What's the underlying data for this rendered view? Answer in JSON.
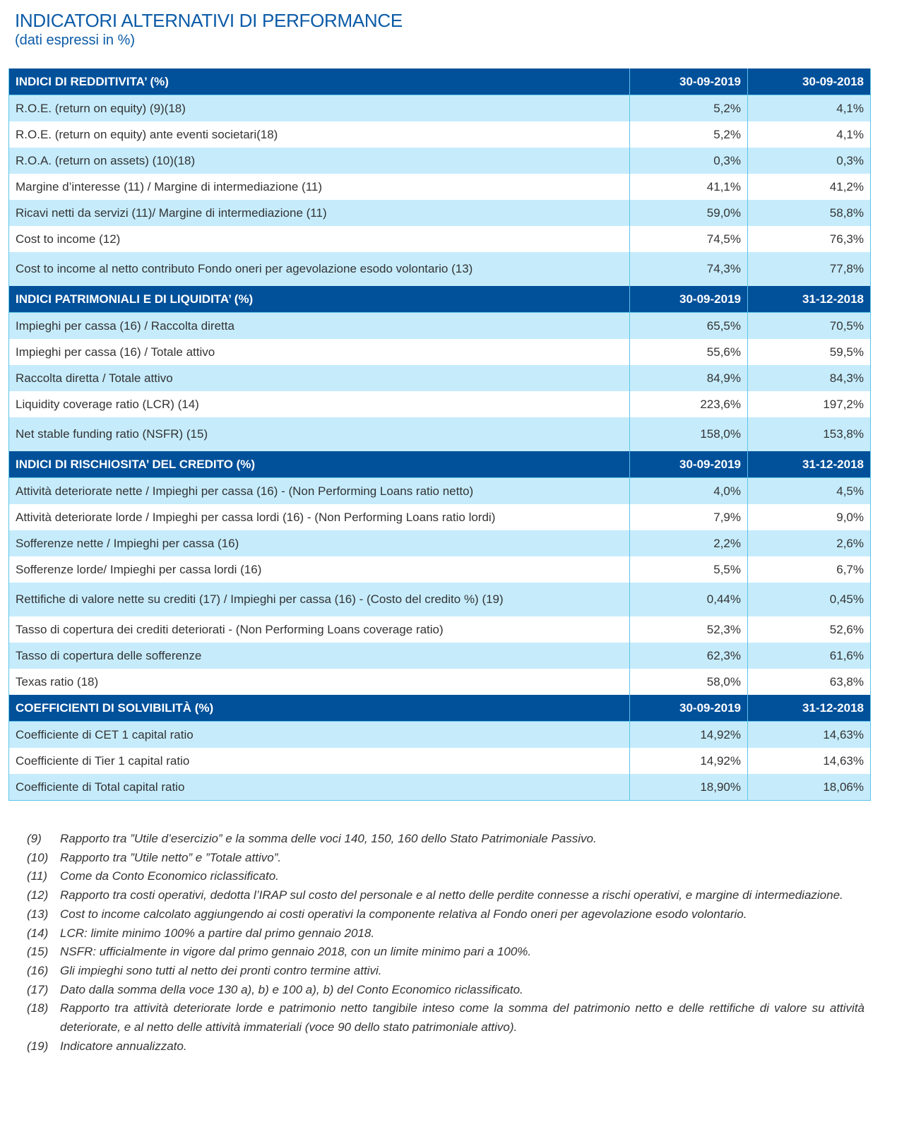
{
  "title": "INDICATORI ALTERNATIVI DI PERFORMANCE",
  "subtitle": "(dati espressi in %)",
  "colors": {
    "header_bg": "#00509a",
    "row_light": "#c6ecfc",
    "border": "#5bc4e8",
    "title": "#0b5ba8"
  },
  "sections": [
    {
      "label": "INDICI DI REDDITIVITA’ (%)",
      "col1": "30-09-2019",
      "col2": "30-09-2018",
      "rows": [
        [
          "R.O.E. (return on equity) (9)(18)",
          "5,2%",
          "4,1%"
        ],
        [
          "R.O.E. (return on equity) ante eventi societari(18)",
          "5,2%",
          "4,1%"
        ],
        [
          "R.O.A. (return on assets) (10)(18)",
          "0,3%",
          "0,3%"
        ],
        [
          "Margine d’interesse (11) / Margine di intermediazione  (11)",
          "41,1%",
          "41,2%"
        ],
        [
          "Ricavi netti da servizi (11)/ Margine di intermediazione (11)",
          "59,0%",
          "58,8%"
        ],
        [
          "Cost to income (12)",
          "74,5%",
          "76,3%"
        ],
        [
          "Cost to income al netto contributo Fondo oneri per agevolazione esodo volontario (13)",
          "74,3%",
          "77,8%"
        ]
      ]
    },
    {
      "label": "INDICI PATRIMONIALI E DI LIQUIDITA’ (%)",
      "col1": "30-09-2019",
      "col2": "31-12-2018",
      "rows": [
        [
          "Impieghi per cassa (16) / Raccolta diretta",
          "65,5%",
          "70,5%"
        ],
        [
          "Impieghi per cassa (16)  / Totale attivo",
          "55,6%",
          "59,5%"
        ],
        [
          "Raccolta diretta  / Totale attivo",
          "84,9%",
          "84,3%"
        ],
        [
          "Liquidity coverage ratio (LCR) (14)",
          "223,6%",
          "197,2%"
        ],
        [
          "Net stable funding ratio (NSFR) (15)",
          "158,0%",
          "153,8%"
        ]
      ]
    },
    {
      "label": "INDICI DI RISCHIOSITA’ DEL CREDITO (%)",
      "col1": "30-09-2019",
      "col2": "31-12-2018",
      "rows": [
        [
          "Attività deteriorate nette / Impieghi per cassa (16) - (Non Performing Loans ratio netto)",
          "4,0%",
          "4,5%"
        ],
        [
          "Attività deteriorate lorde / Impieghi per cassa lordi (16) - (Non Performing Loans ratio lordi)",
          "7,9%",
          "9,0%"
        ],
        [
          "Sofferenze nette / Impieghi per cassa (16)",
          "2,2%",
          "2,6%"
        ],
        [
          "Sofferenze lorde/ Impieghi per cassa lordi (16)",
          "5,5%",
          "6,7%"
        ],
        [
          "Rettifiche di valore nette su crediti (17) / Impieghi per cassa (16) - (Costo del credito %) (19)",
          "0,44%",
          "0,45%"
        ],
        [
          "Tasso di copertura dei crediti deteriorati - (Non Performing Loans coverage ratio)",
          "52,3%",
          "52,6%"
        ],
        [
          "Tasso di copertura delle sofferenze",
          "62,3%",
          "61,6%"
        ],
        [
          "Texas ratio (18)",
          "58,0%",
          "63,8%"
        ]
      ]
    },
    {
      "label": "COEFFICIENTI DI SOLVIBILITÀ (%)",
      "col1": "30-09-2019",
      "col2": "31-12-2018",
      "rows": [
        [
          "Coefficiente di CET 1 capital ratio",
          "14,92%",
          "14,63%"
        ],
        [
          "Coefficiente di Tier 1 capital ratio",
          "14,92%",
          "14,63%"
        ],
        [
          "Coefficiente di Total capital ratio",
          "18,90%",
          "18,06%"
        ]
      ]
    }
  ],
  "notes": [
    [
      "(9)",
      "Rapporto tra ”Utile d’esercizio” e la somma delle voci 140, 150, 160 dello Stato Patrimoniale Passivo."
    ],
    [
      "(10)",
      "Rapporto tra ”Utile netto” e ”Totale attivo”."
    ],
    [
      "(11)",
      "Come da Conto Economico riclassificato."
    ],
    [
      "(12)",
      "Rapporto tra costi operativi, dedotta l’IRAP sul costo del personale e al netto delle perdite connesse a rischi operativi, e margine di intermediazione."
    ],
    [
      "(13)",
      "Cost to income calcolato aggiungendo ai costi operativi la componente relativa al Fondo oneri per agevolazione esodo volontario."
    ],
    [
      "(14)",
      "LCR: limite minimo 100% a partire dal primo gennaio 2018."
    ],
    [
      "(15)",
      "NSFR: ufficialmente in vigore dal primo gennaio 2018, con un limite minimo pari a 100%."
    ],
    [
      "(16)",
      "Gli impieghi sono tutti al netto dei pronti contro termine attivi."
    ],
    [
      "(17)",
      "Dato dalla somma della voce 130 a), b) e 100 a), b) del Conto Economico riclassificato."
    ],
    [
      "(18)",
      "Rapporto tra attività deteriorate lorde e patrimonio netto tangibile inteso come la somma del patrimonio netto e delle rettifiche di valore su attività deteriorate, e al netto delle attività immateriali (voce 90 dello stato patrimoniale attivo)."
    ],
    [
      "(19)",
      "Indicatore annualizzato."
    ]
  ]
}
